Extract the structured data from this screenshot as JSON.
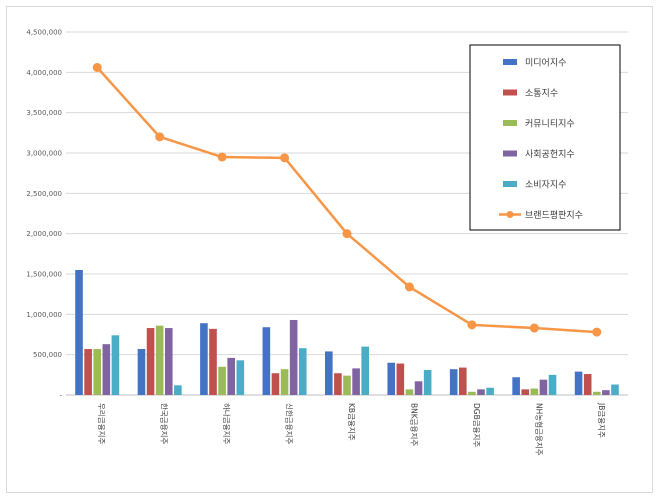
{
  "chart_data": {
    "type": "bar+line",
    "title": "",
    "xlabel": "",
    "ylabel": "",
    "ylim": [
      0,
      4500000
    ],
    "y_ticks": [
      0,
      500000,
      1000000,
      1500000,
      2000000,
      2500000,
      3000000,
      3500000,
      4000000,
      4500000
    ],
    "y_tick_labels": [
      "-",
      "500,000",
      "1,000,000",
      "1,500,000",
      "2,000,000",
      "2,500,000",
      "3,000,000",
      "3,500,000",
      "4,000,000",
      "4,500,000"
    ],
    "grid": true,
    "legend_position": "top-right",
    "categories": [
      "우리금융지주",
      "한국금융지주",
      "하나금융지주",
      "신한금융지주",
      "KB금융지주",
      "BNK금융지주",
      "DGB금융지주",
      "NH농협금융지주",
      "JB금융지주"
    ],
    "series": [
      {
        "name": "미디어지수",
        "kind": "bar",
        "color": "#4472c4",
        "values": [
          1550000,
          570000,
          890000,
          840000,
          540000,
          400000,
          320000,
          220000,
          290000
        ]
      },
      {
        "name": "소통지수",
        "kind": "bar",
        "color": "#c0504d",
        "values": [
          570000,
          830000,
          820000,
          270000,
          270000,
          390000,
          340000,
          70000,
          260000
        ]
      },
      {
        "name": "커뮤니티지수",
        "kind": "bar",
        "color": "#9bbb59",
        "values": [
          570000,
          860000,
          350000,
          320000,
          240000,
          70000,
          40000,
          80000,
          40000
        ]
      },
      {
        "name": "사회공헌지수",
        "kind": "bar",
        "color": "#8064a2",
        "values": [
          630000,
          830000,
          460000,
          930000,
          330000,
          170000,
          70000,
          190000,
          60000
        ]
      },
      {
        "name": "소비자지수",
        "kind": "bar",
        "color": "#4bacc6",
        "values": [
          740000,
          120000,
          430000,
          580000,
          600000,
          310000,
          90000,
          250000,
          130000
        ]
      },
      {
        "name": "브랜드평판지수",
        "kind": "line",
        "color": "#f79646",
        "values": [
          4060000,
          3200000,
          2950000,
          2940000,
          2000000,
          1340000,
          870000,
          830000,
          780000
        ]
      }
    ]
  }
}
